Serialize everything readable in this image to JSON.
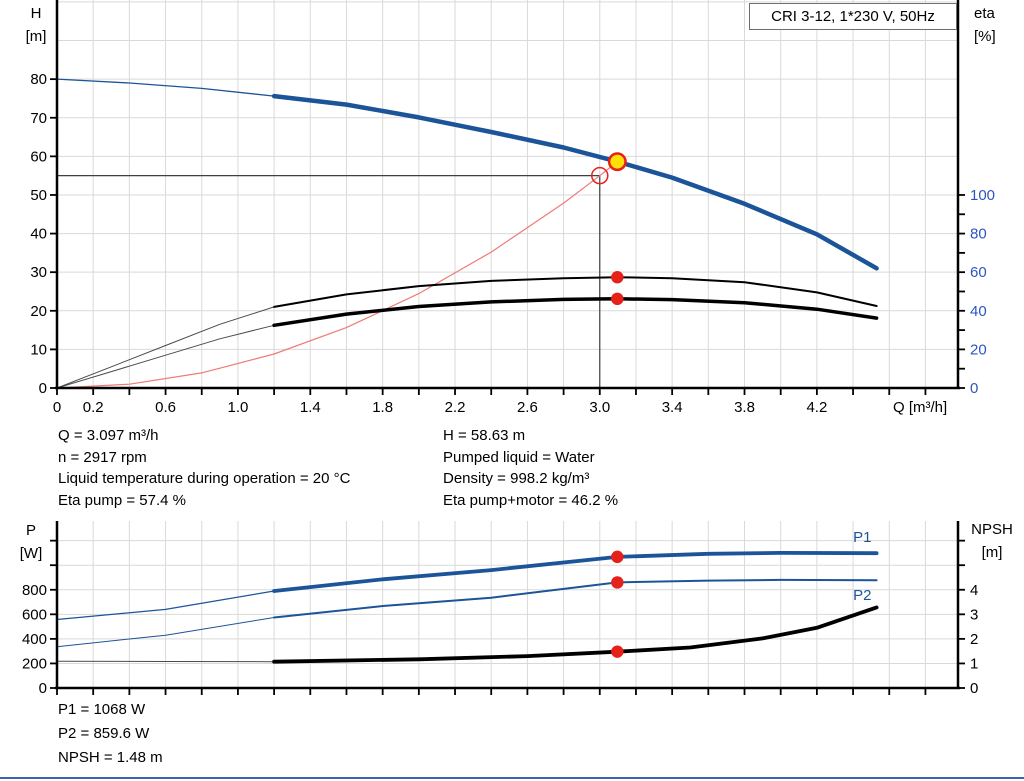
{
  "colors": {
    "grid": "#d9d9d9",
    "axis": "#000000",
    "text": "#000000",
    "blue": "#1c5499",
    "black": "#000000",
    "gray": "#4a4a4a",
    "guide": "#3f3f3f",
    "red_line": "#ee7b76",
    "red": "#e6211a",
    "yellow": "#ffe10a",
    "eta_labels": "#2d55c2",
    "separator": "#3c61ae"
  },
  "axes_labels": {
    "h": "H",
    "h_unit": "[m]",
    "eta": "eta",
    "eta_unit": "[%]",
    "p": "P",
    "p_unit": "[W]",
    "npsh": "NPSH",
    "npsh_unit": "[m]"
  },
  "info_top_left": {
    "lines": [
      "Q = 3.097 m³/h",
      "n = 2917 rpm",
      "Liquid temperature during operation = 20 °C",
      "Eta pump = 57.4 %"
    ]
  },
  "info_top_right": {
    "lines": [
      "H = 58.63 m",
      "Pumped liquid = Water",
      "Density = 998.2 kg/m³",
      "Eta pump+motor = 46.2 %"
    ]
  },
  "info_bottom": {
    "lines": [
      "P1 = 1068 W",
      "P2 = 859.6 W",
      "NPSH = 1.48 m"
    ]
  },
  "chart_data": [
    {
      "id": "hq",
      "type": "line",
      "title": "CRI 3-12, 1*230 V, 50Hz",
      "x": {
        "label": "Q [m³/h]",
        "min": 0,
        "max": 4.98,
        "ticks": [
          [
            0,
            "0"
          ],
          [
            0.2,
            "0.2"
          ],
          [
            0.4,
            null
          ],
          [
            0.6,
            "0.6"
          ],
          [
            0.8,
            null
          ],
          [
            1,
            "1.0"
          ],
          [
            1.2,
            null
          ],
          [
            1.4,
            "1.4"
          ],
          [
            1.6,
            null
          ],
          [
            1.8,
            "1.8"
          ],
          [
            2,
            null
          ],
          [
            2.2,
            "2.2"
          ],
          [
            2.4,
            null
          ],
          [
            2.6,
            "2.6"
          ],
          [
            2.8,
            null
          ],
          [
            3,
            "3.0"
          ],
          [
            3.2,
            null
          ],
          [
            3.4,
            "3.4"
          ],
          [
            3.6,
            null
          ],
          [
            3.8,
            "3.8"
          ],
          [
            4,
            null
          ],
          [
            4.2,
            "4.2"
          ],
          [
            4.4,
            null
          ],
          [
            4.6,
            null
          ],
          [
            4.8,
            null
          ]
        ]
      },
      "left": {
        "label": "H [m]",
        "min": 0,
        "max": 100.5,
        "ticks": [
          [
            0,
            "0"
          ],
          [
            10,
            "10"
          ],
          [
            20,
            "20"
          ],
          [
            30,
            "30"
          ],
          [
            40,
            "40"
          ],
          [
            50,
            "50"
          ],
          [
            60,
            "60"
          ],
          [
            70,
            "70"
          ],
          [
            80,
            "80"
          ]
        ],
        "grid": [
          10,
          20,
          30,
          40,
          50,
          60,
          70,
          80,
          90,
          100
        ]
      },
      "right": {
        "label": "eta [%]",
        "min": 0,
        "max": 201,
        "label_color": "eta_labels",
        "ticks": [
          [
            0,
            "0"
          ],
          [
            10,
            null
          ],
          [
            20,
            "20"
          ],
          [
            30,
            null
          ],
          [
            40,
            "40"
          ],
          [
            50,
            null
          ],
          [
            60,
            "60"
          ],
          [
            70,
            null
          ],
          [
            80,
            "80"
          ],
          [
            90,
            null
          ],
          [
            100,
            "100"
          ]
        ]
      },
      "series": [
        {
          "name": "pump-curve-extension",
          "axis": "left",
          "color": "blue",
          "w": 1.3,
          "points": [
            [
              0,
              80
            ],
            [
              0.4,
              79
            ],
            [
              0.8,
              77.6
            ],
            [
              1.2,
              75.6
            ]
          ]
        },
        {
          "name": "pump-curve",
          "axis": "left",
          "color": "blue",
          "w": 4.5,
          "points": [
            [
              1.2,
              75.6
            ],
            [
              1.6,
              73.4
            ],
            [
              2,
              70.1
            ],
            [
              2.4,
              66.3
            ],
            [
              2.8,
              62.3
            ],
            [
              3.097,
              58.63
            ],
            [
              3.4,
              54.5
            ],
            [
              3.8,
              47.7
            ],
            [
              4.2,
              39.8
            ],
            [
              4.53,
              31
            ]
          ]
        },
        {
          "name": "system-curve",
          "axis": "left",
          "color": "red_line",
          "w": 1.2,
          "points": [
            [
              0,
              0
            ],
            [
              0.4,
              0.98
            ],
            [
              0.8,
              3.91
            ],
            [
              1.2,
              8.8
            ],
            [
              1.6,
              15.64
            ],
            [
              2,
              24.44
            ],
            [
              2.4,
              35.2
            ],
            [
              2.8,
              47.9
            ],
            [
              3,
              55
            ],
            [
              3.097,
              58.63
            ]
          ]
        },
        {
          "name": "eta-pump-extension",
          "axis": "right",
          "color": "gray",
          "w": 1,
          "points": [
            [
              0,
              0
            ],
            [
              0.3,
              11
            ],
            [
              0.6,
              22
            ],
            [
              0.9,
              33
            ],
            [
              1.2,
              42
            ]
          ]
        },
        {
          "name": "eta-pump-curve",
          "axis": "right",
          "color": "black",
          "w": 2,
          "points": [
            [
              1.2,
              42
            ],
            [
              1.6,
              48.5
            ],
            [
              2,
              52.8
            ],
            [
              2.4,
              55.5
            ],
            [
              2.8,
              56.9
            ],
            [
              3.097,
              57.4
            ],
            [
              3.4,
              56.9
            ],
            [
              3.8,
              54.8
            ],
            [
              4.2,
              49.5
            ],
            [
              4.53,
              42.5
            ]
          ]
        },
        {
          "name": "eta-pump-motor-extension",
          "axis": "right",
          "color": "gray",
          "w": 1,
          "points": [
            [
              0,
              0
            ],
            [
              0.3,
              8.5
            ],
            [
              0.6,
              17
            ],
            [
              0.9,
              25.5
            ],
            [
              1.2,
              32.5
            ]
          ]
        },
        {
          "name": "eta-pump-motor-curve",
          "axis": "right",
          "color": "black",
          "w": 3.5,
          "points": [
            [
              1.2,
              32.5
            ],
            [
              1.6,
              38.3
            ],
            [
              2,
              42.2
            ],
            [
              2.4,
              44.6
            ],
            [
              2.8,
              45.9
            ],
            [
              3.097,
              46.2
            ],
            [
              3.4,
              45.8
            ],
            [
              3.8,
              44.2
            ],
            [
              4.2,
              40.8
            ],
            [
              4.53,
              36.2
            ]
          ]
        }
      ],
      "crosshair": {
        "q": 3,
        "v": 55,
        "axis": "left"
      },
      "markers": [
        {
          "name": "duty-point",
          "axis": "left",
          "q": 3,
          "v": 55,
          "style": "open"
        },
        {
          "name": "operating-point",
          "axis": "left",
          "q": 3.097,
          "v": 58.63,
          "style": "yellow"
        },
        {
          "name": "eta-pump-point",
          "axis": "right",
          "q": 3.097,
          "v": 57.4,
          "style": "dot"
        },
        {
          "name": "eta-pump-motor-point",
          "axis": "right",
          "q": 3.097,
          "v": 46.2,
          "style": "dot"
        }
      ]
    },
    {
      "id": "power",
      "type": "line",
      "title": null,
      "x": {
        "label": null,
        "min": 0,
        "max": 4.98,
        "ticks": [
          [
            0,
            null
          ],
          [
            0.2,
            null
          ],
          [
            0.4,
            null
          ],
          [
            0.6,
            null
          ],
          [
            0.8,
            null
          ],
          [
            1,
            null
          ],
          [
            1.2,
            null
          ],
          [
            1.4,
            null
          ],
          [
            1.6,
            null
          ],
          [
            1.8,
            null
          ],
          [
            2,
            null
          ],
          [
            2.2,
            null
          ],
          [
            2.4,
            null
          ],
          [
            2.6,
            null
          ],
          [
            2.8,
            null
          ],
          [
            3,
            null
          ],
          [
            3.2,
            null
          ],
          [
            3.4,
            null
          ],
          [
            3.6,
            null
          ],
          [
            3.8,
            null
          ],
          [
            4,
            null
          ],
          [
            4.2,
            null
          ],
          [
            4.4,
            null
          ],
          [
            4.6,
            null
          ],
          [
            4.8,
            null
          ]
        ]
      },
      "left": {
        "label": "P [W]",
        "min": 0,
        "max": 1360,
        "ticks": [
          [
            0,
            "0"
          ],
          [
            200,
            "200"
          ],
          [
            400,
            "400"
          ],
          [
            600,
            "600"
          ],
          [
            800,
            "800"
          ],
          [
            1000,
            null
          ],
          [
            1200,
            null
          ]
        ],
        "grid": [
          200,
          400,
          600,
          800,
          1000,
          1200
        ]
      },
      "right": {
        "label": "NPSH [m]",
        "min": 0,
        "max": 6.8,
        "ticks": [
          [
            0,
            "0"
          ],
          [
            1,
            "1"
          ],
          [
            2,
            "2"
          ],
          [
            3,
            "3"
          ],
          [
            4,
            "4"
          ],
          [
            5,
            null
          ],
          [
            6,
            null
          ]
        ]
      },
      "series": [
        {
          "name": "p1-extension",
          "axis": "left",
          "color": "blue",
          "w": 1.2,
          "points": [
            [
              0,
              558
            ],
            [
              0.6,
              640
            ],
            [
              1.2,
              790
            ]
          ]
        },
        {
          "name": "p1-curve",
          "axis": "left",
          "color": "blue",
          "w": 3.8,
          "label": {
            "text": "P1",
            "q": 4.4,
            "v": 1190
          },
          "points": [
            [
              1.2,
              790
            ],
            [
              1.8,
              885
            ],
            [
              2.4,
              960
            ],
            [
              3.097,
              1068
            ],
            [
              3.6,
              1093
            ],
            [
              4,
              1100
            ],
            [
              4.53,
              1098
            ]
          ]
        },
        {
          "name": "p2-extension",
          "axis": "left",
          "color": "blue",
          "w": 1,
          "points": [
            [
              0,
              336
            ],
            [
              0.6,
              430
            ],
            [
              1.2,
              574
            ]
          ]
        },
        {
          "name": "p2-curve",
          "axis": "left",
          "color": "blue",
          "w": 2,
          "label": {
            "text": "P2",
            "q": 4.4,
            "v": 718
          },
          "points": [
            [
              1.2,
              574
            ],
            [
              1.8,
              668
            ],
            [
              2.4,
              735
            ],
            [
              3.097,
              859.6
            ],
            [
              3.6,
              875
            ],
            [
              4,
              880
            ],
            [
              4.53,
              877
            ]
          ]
        },
        {
          "name": "npsh-extension",
          "axis": "right",
          "color": "gray",
          "w": 1,
          "points": [
            [
              0,
              1.09
            ],
            [
              0.6,
              1.08
            ],
            [
              1.2,
              1.07
            ]
          ]
        },
        {
          "name": "npsh-curve",
          "axis": "right",
          "color": "black",
          "w": 3.8,
          "points": [
            [
              1.2,
              1.07
            ],
            [
              2,
              1.17
            ],
            [
              2.6,
              1.3
            ],
            [
              3.097,
              1.48
            ],
            [
              3.5,
              1.65
            ],
            [
              3.9,
              2.02
            ],
            [
              4.2,
              2.45
            ],
            [
              4.53,
              3.28
            ]
          ]
        }
      ],
      "crosshair": null,
      "markers": [
        {
          "name": "p1-point",
          "axis": "left",
          "q": 3.097,
          "v": 1068,
          "style": "dot"
        },
        {
          "name": "p2-point",
          "axis": "left",
          "q": 3.097,
          "v": 859.6,
          "style": "dot"
        },
        {
          "name": "npsh-point",
          "axis": "right",
          "q": 3.097,
          "v": 1.48,
          "style": "dot"
        }
      ]
    }
  ]
}
